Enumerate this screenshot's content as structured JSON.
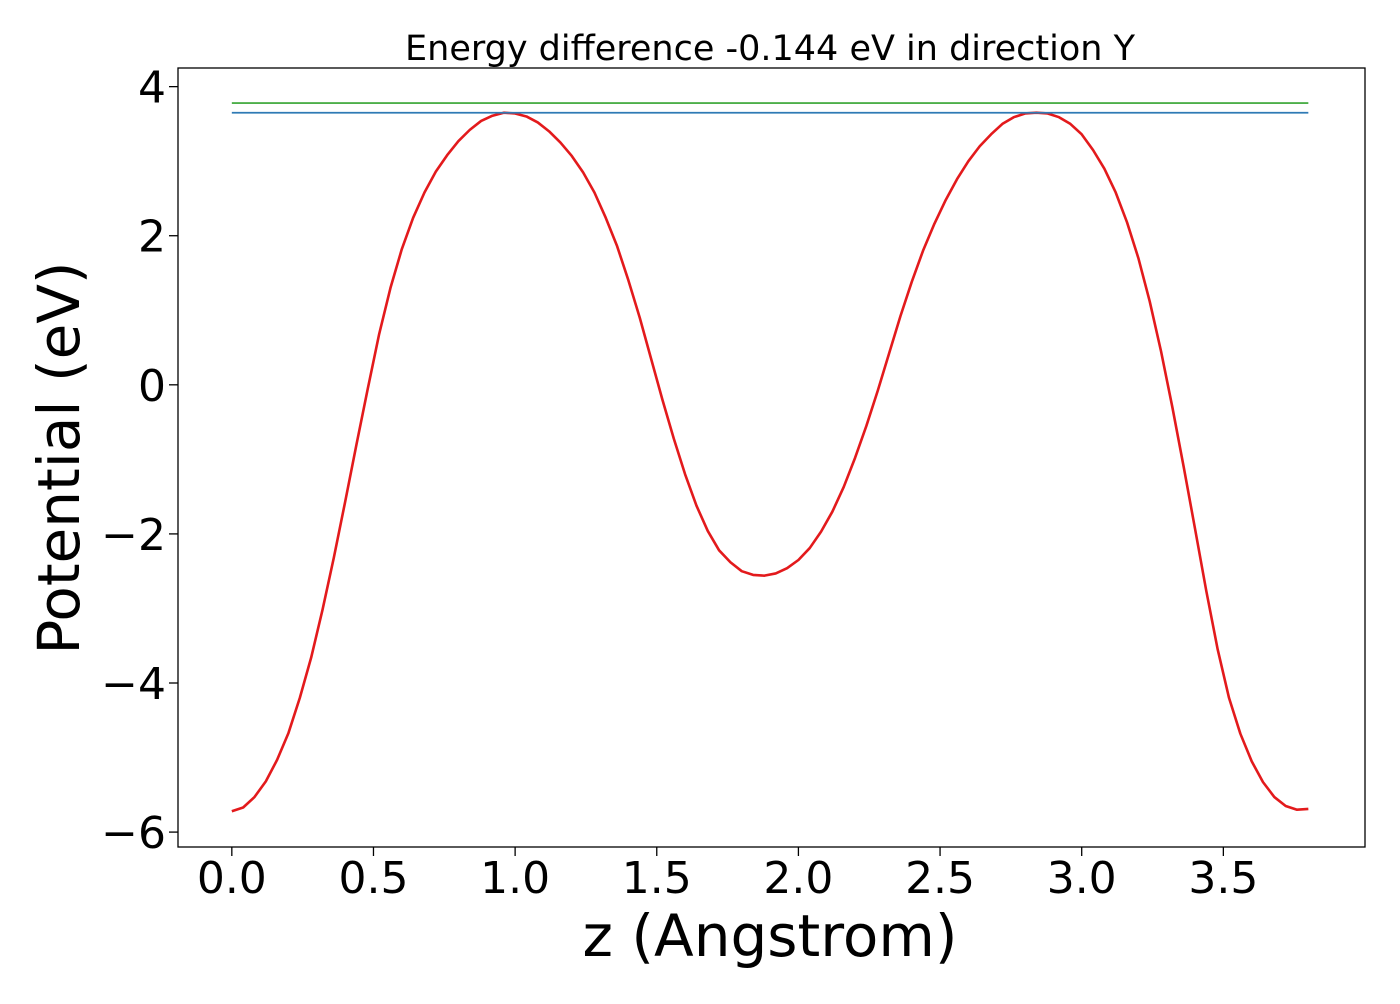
{
  "chart_data": {
    "type": "line",
    "title": "Energy difference -0.144 eV in direction Y",
    "xlabel": "z (Angstrom)",
    "ylabel": "Potential (eV)",
    "xlim": [
      -0.19,
      4.0
    ],
    "ylim": [
      -6.2,
      4.25
    ],
    "xticks": [
      0.0,
      0.5,
      1.0,
      1.5,
      2.0,
      2.5,
      3.0,
      3.5
    ],
    "xtick_labels": [
      "0.0",
      "0.5",
      "1.0",
      "1.5",
      "2.0",
      "2.5",
      "3.0",
      "3.5"
    ],
    "yticks": [
      -6,
      -4,
      -2,
      0,
      2,
      4
    ],
    "ytick_labels": [
      "−6",
      "−4",
      "−2",
      "0",
      "2",
      "4"
    ],
    "grid": false,
    "series": [
      {
        "color": "#e31a1c",
        "x": [
          0.0,
          0.04,
          0.08,
          0.12,
          0.16,
          0.2,
          0.24,
          0.28,
          0.32,
          0.36,
          0.4,
          0.44,
          0.48,
          0.52,
          0.56,
          0.6,
          0.64,
          0.68,
          0.72,
          0.76,
          0.8,
          0.84,
          0.88,
          0.92,
          0.96,
          1.0,
          1.04,
          1.08,
          1.12,
          1.16,
          1.2,
          1.24,
          1.28,
          1.32,
          1.36,
          1.4,
          1.44,
          1.48,
          1.52,
          1.56,
          1.6,
          1.64,
          1.68,
          1.72,
          1.76,
          1.8,
          1.84,
          1.88,
          1.92,
          1.96,
          2.0,
          2.04,
          2.08,
          2.12,
          2.16,
          2.2,
          2.24,
          2.28,
          2.32,
          2.36,
          2.4,
          2.44,
          2.48,
          2.52,
          2.56,
          2.6,
          2.64,
          2.68,
          2.72,
          2.76,
          2.8,
          2.84,
          2.88,
          2.92,
          2.96,
          3.0,
          3.04,
          3.08,
          3.12,
          3.16,
          3.2,
          3.24,
          3.28,
          3.32,
          3.36,
          3.4,
          3.44,
          3.48,
          3.52,
          3.56,
          3.6,
          3.64,
          3.68,
          3.72,
          3.76,
          3.8
        ],
        "y": [
          -5.72,
          -5.67,
          -5.53,
          -5.32,
          -5.03,
          -4.67,
          -4.2,
          -3.66,
          -3.02,
          -2.32,
          -1.57,
          -0.8,
          -0.05,
          0.68,
          1.3,
          1.82,
          2.24,
          2.58,
          2.86,
          3.08,
          3.27,
          3.42,
          3.54,
          3.61,
          3.65,
          3.64,
          3.6,
          3.52,
          3.4,
          3.25,
          3.07,
          2.85,
          2.58,
          2.24,
          1.86,
          1.4,
          0.9,
          0.35,
          -0.2,
          -0.72,
          -1.2,
          -1.62,
          -1.96,
          -2.22,
          -2.38,
          -2.5,
          -2.55,
          -2.56,
          -2.53,
          -2.46,
          -2.35,
          -2.19,
          -1.97,
          -1.7,
          -1.37,
          -0.98,
          -0.55,
          -0.08,
          0.42,
          0.92,
          1.38,
          1.8,
          2.16,
          2.48,
          2.76,
          3.0,
          3.2,
          3.36,
          3.5,
          3.59,
          3.64,
          3.65,
          3.64,
          3.59,
          3.5,
          3.36,
          3.15,
          2.9,
          2.58,
          2.18,
          1.7,
          1.12,
          0.45,
          -0.3,
          -1.1,
          -1.93,
          -2.77,
          -3.55,
          -4.2,
          -4.68,
          -5.05,
          -5.33,
          -5.53,
          -5.65,
          -5.7,
          -5.69
        ]
      },
      {
        "color": "#2f7ab5",
        "x": [
          0.0,
          3.8
        ],
        "y": [
          3.65,
          3.65
        ]
      },
      {
        "color": "#4daf4a",
        "x": [
          0.0,
          3.8
        ],
        "y": [
          3.78,
          3.78
        ]
      }
    ]
  }
}
